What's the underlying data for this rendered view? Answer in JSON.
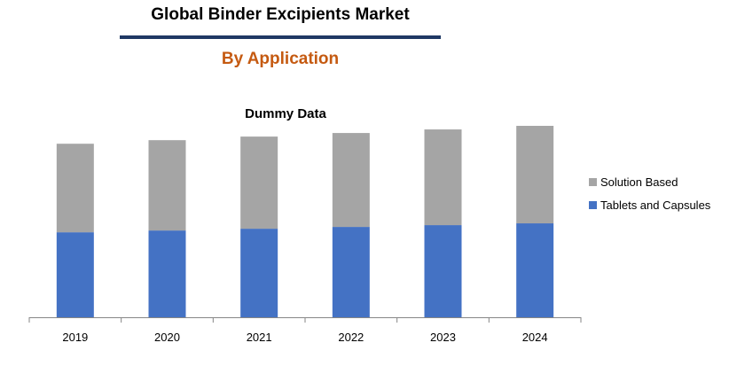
{
  "header": {
    "title": "Global Binder Excipients Market",
    "subtitle": "By Application"
  },
  "chart_data": {
    "type": "bar",
    "stacked": true,
    "title": "Dummy Data",
    "categories": [
      "2019",
      "2020",
      "2021",
      "2022",
      "2023",
      "2024"
    ],
    "series": [
      {
        "name": "Tablets and Capsules",
        "color": "#4472c4",
        "values": [
          47.5,
          48.5,
          49.5,
          50.5,
          51.5,
          52.5
        ]
      },
      {
        "name": "Solution Based",
        "color": "#a5a5a5",
        "values": [
          49.5,
          50.5,
          51.5,
          52.5,
          53.5,
          54.5
        ]
      }
    ],
    "legend_order": [
      "Solution Based",
      "Tablets and Capsules"
    ],
    "legend_position": "right",
    "xlabel": "",
    "ylabel": "",
    "ylim": [
      0,
      108
    ],
    "grid": false
  }
}
